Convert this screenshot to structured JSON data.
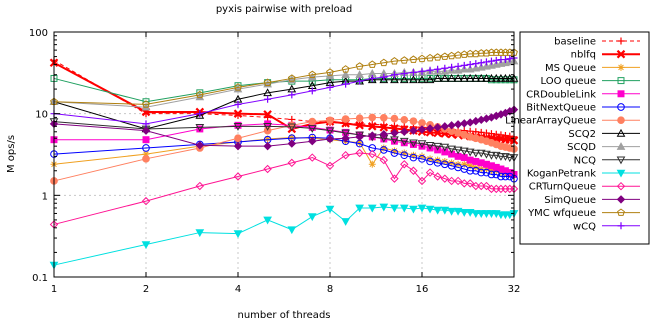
{
  "chart_data": {
    "type": "line",
    "title": "pyxis pairwise with preload",
    "xlabel": "number of threads",
    "ylabel": "M ops/s",
    "xscale": "log2",
    "yscale": "log10",
    "xlim": [
      1,
      32
    ],
    "ylim": [
      0.1,
      100
    ],
    "xticks": [
      1,
      2,
      4,
      8,
      16,
      32
    ],
    "xtick_labels": [
      "1",
      "2",
      "4",
      "8",
      "16",
      "32"
    ],
    "yticks": [
      0.1,
      1,
      10,
      100
    ],
    "ytick_labels": [
      "0.1",
      "1",
      "10",
      "100"
    ],
    "grid": true,
    "legend_position": "right",
    "x": [
      1,
      2,
      3,
      4,
      5,
      6,
      7,
      8,
      9,
      10,
      11,
      12,
      13,
      14,
      15,
      16,
      17,
      18,
      19,
      20,
      21,
      22,
      23,
      24,
      25,
      26,
      27,
      28,
      29,
      30,
      31,
      32
    ],
    "series": [
      {
        "name": "baseline",
        "color": "#ff0000",
        "marker": "plus",
        "dash": true,
        "values": [
          45,
          10,
          10,
          9.5,
          9,
          8.5,
          8,
          7.8,
          7.6,
          7.5,
          7.4,
          7.3,
          7.1,
          7.0,
          6.9,
          6.8,
          6.7,
          6.6,
          6.5,
          6.4,
          6.3,
          6.2,
          6.1,
          6.0,
          5.9,
          5.8,
          5.7,
          5.6,
          5.5,
          5.4,
          5.3,
          5.2
        ]
      },
      {
        "name": "nblfq",
        "color": "#ff0000",
        "marker": "x",
        "bold": true,
        "values": [
          42,
          10.5,
          10.5,
          10,
          9.8,
          6.5,
          7.5,
          8,
          7.6,
          7.2,
          7.0,
          6.8,
          6.6,
          6.4,
          6.2,
          6.0,
          5.9,
          5.8,
          5.7,
          5.6,
          5.5,
          5.4,
          5.3,
          5.2,
          5.1,
          5.0,
          5.0,
          4.9,
          4.9,
          4.8,
          4.8,
          4.7
        ]
      },
      {
        "name": "MS Queue",
        "color": "#f0a020",
        "marker": "star",
        "values": [
          2.4,
          3.2,
          4.0,
          4.5,
          4.9,
          5.1,
          5.0,
          4.8,
          4.6,
          4.4,
          2.4,
          3.8,
          3.5,
          3.3,
          3.1,
          3.0,
          2.8,
          2.7,
          2.6,
          2.5,
          2.4,
          2.4,
          2.3,
          2.2,
          2.1,
          2.1,
          2.0,
          2.0,
          1.9,
          1.9,
          1.8,
          1.8
        ]
      },
      {
        "name": "LOO queue",
        "color": "#20a060",
        "marker": "square-open",
        "values": [
          27,
          14,
          18,
          22,
          24,
          25,
          25,
          26,
          26,
          26,
          27,
          27,
          27,
          27,
          27,
          27,
          27,
          27,
          27,
          27,
          27,
          27,
          27,
          27,
          27,
          27,
          26,
          26,
          26,
          26,
          26,
          26
        ]
      },
      {
        "name": "CRDoubleLink",
        "color": "#ff00cc",
        "marker": "square-filled",
        "values": [
          4.8,
          4.8,
          6.5,
          7.2,
          7.5,
          7.2,
          6.8,
          6.3,
          5.9,
          5.5,
          5.2,
          4.9,
          4.6,
          4.4,
          4.2,
          4.0,
          3.8,
          3.6,
          3.4,
          3.2,
          3.0,
          2.9,
          2.7,
          2.6,
          2.5,
          2.4,
          2.3,
          2.2,
          2.1,
          2.0,
          1.9,
          1.8
        ]
      },
      {
        "name": "BitNextQueue",
        "color": "#0000ff",
        "marker": "circle-open",
        "values": [
          3.2,
          3.8,
          4.2,
          4.5,
          4.8,
          5.0,
          5.1,
          5.0,
          4.6,
          4.3,
          3.8,
          3.6,
          3.3,
          3.1,
          2.9,
          2.8,
          2.6,
          2.5,
          2.4,
          2.3,
          2.2,
          2.1,
          2.0,
          2.0,
          1.9,
          1.9,
          1.8,
          1.8,
          1.7,
          1.7,
          1.7,
          1.6
        ]
      },
      {
        "name": "LinearArrayQueue",
        "color": "#ff8060",
        "marker": "circle-filled",
        "values": [
          1.5,
          2.8,
          3.8,
          5.0,
          6.2,
          7.2,
          8.0,
          8.3,
          8.6,
          8.8,
          9.0,
          8.9,
          8.7,
          8.4,
          8.1,
          7.7,
          7.3,
          6.9,
          6.5,
          6.1,
          5.8,
          5.5,
          5.2,
          5.0,
          4.8,
          4.6,
          4.4,
          4.2,
          4.0,
          3.9,
          3.8,
          3.7
        ]
      },
      {
        "name": "SCQ2",
        "color": "#000000",
        "marker": "triangle-open",
        "values": [
          14,
          6.5,
          9.5,
          15,
          18,
          20,
          22,
          24,
          25,
          25,
          26,
          26,
          26,
          26,
          26,
          26,
          26,
          27,
          27,
          27,
          27,
          27,
          27,
          27,
          27,
          27,
          27,
          27,
          27,
          27,
          27,
          27
        ]
      },
      {
        "name": "SCQD",
        "color": "#a0a0a0",
        "marker": "triangle-filled",
        "values": [
          14,
          12,
          16,
          20,
          23,
          26,
          28,
          29,
          30,
          30,
          31,
          31,
          31,
          32,
          32,
          32,
          33,
          33,
          33,
          34,
          34,
          35,
          35,
          36,
          37,
          38,
          39,
          40,
          41,
          42,
          43,
          44
        ]
      },
      {
        "name": "NCQ",
        "color": "#303030",
        "marker": "triangle-down-open",
        "values": [
          8.0,
          6.5,
          6.8,
          7.0,
          7.0,
          6.9,
          6.6,
          6.2,
          5.8,
          5.5,
          5.2,
          5.0,
          4.8,
          4.6,
          4.4,
          4.3,
          4.1,
          4.0,
          3.9,
          3.7,
          3.6,
          3.5,
          3.4,
          3.3,
          3.3,
          3.2,
          3.1,
          3.1,
          3.0,
          3.0,
          2.9,
          2.9
        ]
      },
      {
        "name": "KoganPetrank",
        "color": "#00e0e0",
        "marker": "triangle-down-filled",
        "values": [
          0.14,
          0.25,
          0.35,
          0.34,
          0.5,
          0.38,
          0.55,
          0.68,
          0.48,
          0.7,
          0.7,
          0.72,
          0.7,
          0.7,
          0.68,
          0.7,
          0.68,
          0.66,
          0.66,
          0.64,
          0.64,
          0.62,
          0.62,
          0.6,
          0.6,
          0.6,
          0.6,
          0.6,
          0.58,
          0.58,
          0.58,
          0.6
        ]
      },
      {
        "name": "CRTurnQueue",
        "color": "#ff1493",
        "marker": "diamond-open",
        "values": [
          0.44,
          0.85,
          1.3,
          1.7,
          2.1,
          2.5,
          2.9,
          2.3,
          3.1,
          3.3,
          3.2,
          2.7,
          1.6,
          2.4,
          2.0,
          1.5,
          1.9,
          1.7,
          1.6,
          1.5,
          1.5,
          1.4,
          1.4,
          1.3,
          1.3,
          1.3,
          1.2,
          1.2,
          1.2,
          1.2,
          1.2,
          1.2
        ]
      },
      {
        "name": "SimQueue",
        "color": "#800080",
        "marker": "diamond-filled",
        "values": [
          7.5,
          6.2,
          4.1,
          4.0,
          4.0,
          4.3,
          4.6,
          4.9,
          5.0,
          5.2,
          5.4,
          5.6,
          5.8,
          6.0,
          6.2,
          6.4,
          6.6,
          6.8,
          7.0,
          7.2,
          7.4,
          7.6,
          7.8,
          8.1,
          8.4,
          8.7,
          9.0,
          9.4,
          9.8,
          10.2,
          10.7,
          11.2
        ]
      },
      {
        "name": "YMC wfqueue",
        "color": "#b08010",
        "marker": "pentagon-open",
        "values": [
          14,
          13,
          17,
          21,
          24,
          27,
          30,
          32,
          35,
          38,
          40,
          42,
          44,
          45,
          46,
          47,
          48,
          49,
          50,
          51,
          52,
          53,
          54,
          54,
          55,
          55,
          56,
          56,
          56,
          56,
          56,
          56
        ]
      },
      {
        "name": "wCQ",
        "color": "#8000ff",
        "marker": "plus",
        "values": [
          10,
          7.5,
          10,
          13,
          15,
          17,
          19,
          21,
          23,
          25,
          27,
          28,
          30,
          31,
          32,
          33,
          34,
          35,
          36,
          37,
          38,
          39,
          40,
          41,
          42,
          43,
          44,
          45,
          46,
          46,
          47,
          48
        ]
      }
    ]
  }
}
